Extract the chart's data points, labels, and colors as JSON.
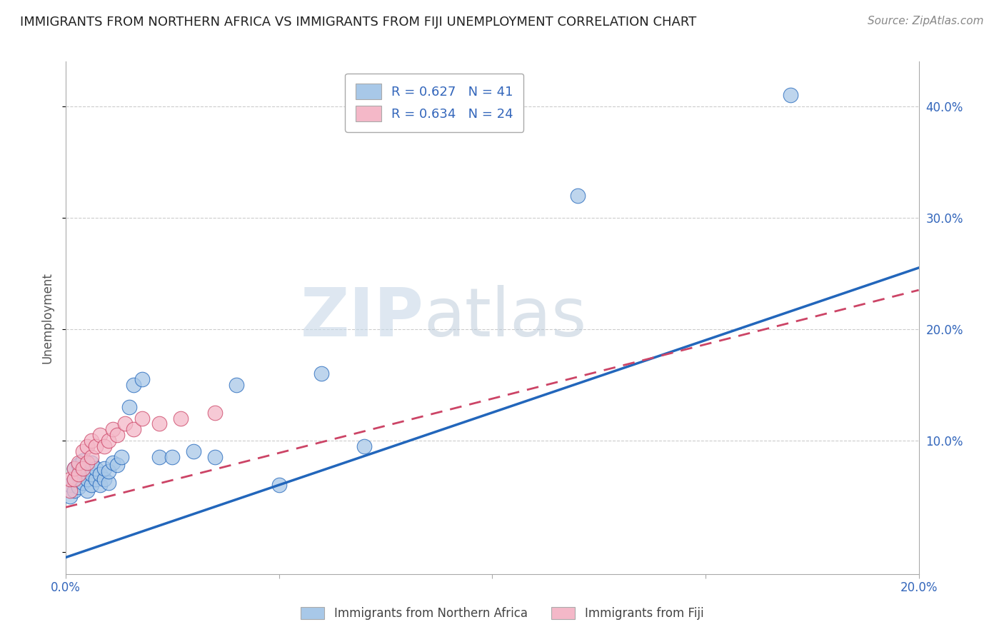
{
  "title": "IMMIGRANTS FROM NORTHERN AFRICA VS IMMIGRANTS FROM FIJI UNEMPLOYMENT CORRELATION CHART",
  "source": "Source: ZipAtlas.com",
  "ylabel": "Unemployment",
  "xlim": [
    0.0,
    0.2
  ],
  "ylim": [
    -0.02,
    0.44
  ],
  "xticks": [
    0.0,
    0.05,
    0.1,
    0.15,
    0.2
  ],
  "xticklabels": [
    "0.0%",
    "",
    "",
    "",
    "20.0%"
  ],
  "yticks": [
    0.0,
    0.1,
    0.2,
    0.3,
    0.4
  ],
  "yticklabels_right": [
    "",
    "10.0%",
    "20.0%",
    "30.0%",
    "40.0%"
  ],
  "legend_r1": "R = 0.627   N = 41",
  "legend_r2": "R = 0.634   N = 24",
  "legend_label1": "Immigrants from Northern Africa",
  "legend_label2": "Immigrants from Fiji",
  "color_blue": "#a8c8e8",
  "color_pink": "#f4b8c8",
  "line_color_blue": "#2266bb",
  "line_color_pink": "#cc4466",
  "watermark_zip": "ZIP",
  "watermark_atlas": "atlas",
  "blue_x": [
    0.001,
    0.001,
    0.002,
    0.002,
    0.002,
    0.003,
    0.003,
    0.003,
    0.004,
    0.004,
    0.004,
    0.005,
    0.005,
    0.005,
    0.006,
    0.006,
    0.006,
    0.007,
    0.007,
    0.008,
    0.008,
    0.009,
    0.009,
    0.01,
    0.01,
    0.011,
    0.012,
    0.013,
    0.015,
    0.016,
    0.018,
    0.022,
    0.025,
    0.03,
    0.035,
    0.04,
    0.05,
    0.06,
    0.07,
    0.12,
    0.17
  ],
  "blue_y": [
    0.05,
    0.06,
    0.055,
    0.065,
    0.075,
    0.058,
    0.068,
    0.078,
    0.062,
    0.072,
    0.082,
    0.055,
    0.065,
    0.075,
    0.06,
    0.07,
    0.08,
    0.065,
    0.075,
    0.06,
    0.07,
    0.065,
    0.075,
    0.062,
    0.072,
    0.08,
    0.078,
    0.085,
    0.13,
    0.15,
    0.155,
    0.085,
    0.085,
    0.09,
    0.085,
    0.15,
    0.06,
    0.16,
    0.095,
    0.32,
    0.41
  ],
  "pink_x": [
    0.001,
    0.001,
    0.002,
    0.002,
    0.003,
    0.003,
    0.004,
    0.004,
    0.005,
    0.005,
    0.006,
    0.006,
    0.007,
    0.008,
    0.009,
    0.01,
    0.011,
    0.012,
    0.014,
    0.016,
    0.018,
    0.022,
    0.027,
    0.035
  ],
  "pink_y": [
    0.055,
    0.065,
    0.065,
    0.075,
    0.07,
    0.08,
    0.075,
    0.09,
    0.08,
    0.095,
    0.085,
    0.1,
    0.095,
    0.105,
    0.095,
    0.1,
    0.11,
    0.105,
    0.115,
    0.11,
    0.12,
    0.115,
    0.12,
    0.125
  ],
  "blue_line_x": [
    0.0,
    0.2
  ],
  "blue_line_y": [
    -0.005,
    0.255
  ],
  "pink_line_x": [
    0.0,
    0.2
  ],
  "pink_line_y": [
    0.04,
    0.235
  ]
}
